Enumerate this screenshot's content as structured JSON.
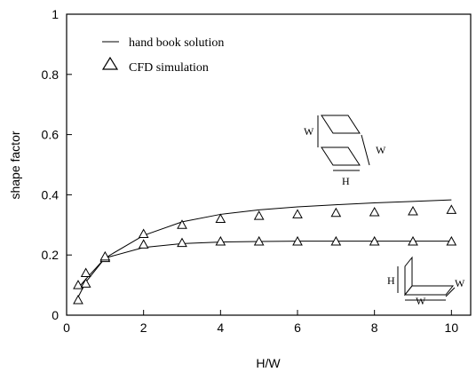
{
  "chart_data": {
    "type": "line",
    "xlabel": "H/W",
    "ylabel": "shape factor",
    "xlim": [
      0,
      10.5
    ],
    "ylim": [
      0,
      1
    ],
    "xticks": [
      0,
      2,
      4,
      6,
      8,
      10
    ],
    "yticks": [
      0,
      0.2,
      0.4,
      0.6,
      0.8,
      1
    ],
    "grid": false,
    "legend": {
      "placement": "top-left",
      "entries": [
        "hand book solution",
        "CFD simulation"
      ]
    },
    "series": [
      {
        "name": "hand book solution",
        "style": "line",
        "x": [
          0.3,
          0.5,
          1,
          2,
          3,
          4,
          5,
          6,
          7,
          8,
          9,
          10
        ],
        "y": [
          0.09,
          0.12,
          0.19,
          0.265,
          0.31,
          0.335,
          0.35,
          0.36,
          0.367,
          0.373,
          0.378,
          0.383
        ]
      },
      {
        "name": "hand book solution",
        "style": "line",
        "x": [
          0.3,
          0.5,
          1,
          2,
          3,
          4,
          5,
          6,
          7,
          8,
          9,
          10
        ],
        "y": [
          0.06,
          0.11,
          0.19,
          0.225,
          0.238,
          0.243,
          0.245,
          0.246,
          0.246,
          0.246,
          0.246,
          0.246
        ]
      },
      {
        "name": "CFD simulation",
        "style": "marker",
        "x": [
          0.3,
          0.5,
          1,
          2,
          3,
          4,
          5,
          6,
          7,
          8,
          9,
          10
        ],
        "y": [
          0.1,
          0.14,
          0.19,
          0.27,
          0.3,
          0.32,
          0.33,
          0.335,
          0.34,
          0.342,
          0.345,
          0.35
        ]
      },
      {
        "name": "CFD simulation",
        "style": "marker",
        "x": [
          0.3,
          0.5,
          1,
          2,
          3,
          4,
          5,
          6,
          7,
          8,
          9,
          10
        ],
        "y": [
          0.05,
          0.105,
          0.195,
          0.235,
          0.24,
          0.245,
          0.245,
          0.245,
          0.245,
          0.245,
          0.245,
          0.245
        ]
      }
    ],
    "annotations": {
      "top_inset": {
        "w_left": "W",
        "w_right": "W",
        "h_bottom": "H"
      },
      "bottom_inset": {
        "h_left": "H",
        "w_right": "W",
        "w_bottom": "W"
      }
    }
  }
}
